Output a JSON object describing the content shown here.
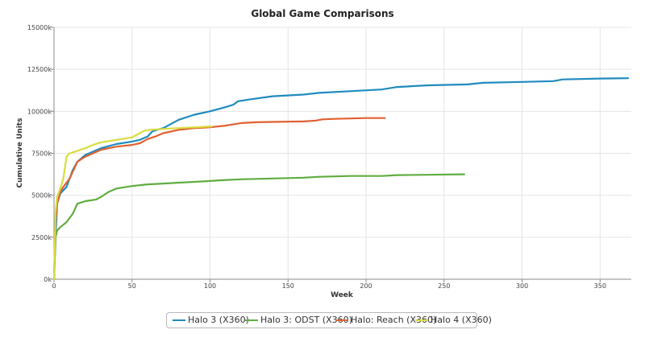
{
  "chart_data": {
    "type": "line",
    "title": "Global Game Comparisons",
    "xlabel": "Week",
    "ylabel": "Cumulative Units",
    "xlim": [
      0,
      370
    ],
    "ylim": [
      0,
      15000000
    ],
    "x_ticks": [
      0,
      50,
      100,
      150,
      200,
      250,
      300,
      350
    ],
    "x_tick_labels": [
      "0",
      "50",
      "100",
      "150",
      "200",
      "250",
      "300",
      "350"
    ],
    "y_ticks": [
      0,
      2500000,
      5000000,
      7500000,
      10000000,
      12500000,
      15000000
    ],
    "y_tick_labels": [
      "0k",
      "2500k",
      "5000k",
      "7500k",
      "10000k",
      "12500k",
      "15000k"
    ],
    "grid": true,
    "legend_position": "bottom",
    "series": [
      {
        "name": "Halo 3 (X360)",
        "color": "#1f8bbf",
        "x": [
          0,
          1,
          2,
          4,
          8,
          12,
          15,
          20,
          30,
          40,
          50,
          55,
          60,
          63,
          66,
          70,
          80,
          90,
          100,
          110,
          115,
          118,
          125,
          140,
          160,
          170,
          190,
          210,
          220,
          240,
          265,
          275,
          300,
          320,
          326,
          350,
          368
        ],
        "y": [
          0,
          2500000,
          4500000,
          5100000,
          5500000,
          6500000,
          7000000,
          7400000,
          7800000,
          8050000,
          8200000,
          8300000,
          8500000,
          8800000,
          8900000,
          9000000,
          9500000,
          9800000,
          10000000,
          10250000,
          10400000,
          10600000,
          10700000,
          10900000,
          11000000,
          11100000,
          11200000,
          11300000,
          11450000,
          11550000,
          11600000,
          11700000,
          11750000,
          11800000,
          11900000,
          11950000,
          11970000
        ]
      },
      {
        "name": "Halo 3: ODST (X360)",
        "color": "#5fad40",
        "x": [
          0,
          1,
          2,
          4,
          8,
          12,
          15,
          20,
          27,
          30,
          35,
          40,
          50,
          60,
          70,
          80,
          90,
          100,
          108,
          120,
          140,
          160,
          170,
          190,
          210,
          220,
          240,
          263
        ],
        "y": [
          0,
          2500000,
          2900000,
          3100000,
          3400000,
          3900000,
          4500000,
          4650000,
          4750000,
          4900000,
          5200000,
          5400000,
          5550000,
          5650000,
          5700000,
          5750000,
          5800000,
          5850000,
          5900000,
          5950000,
          6000000,
          6050000,
          6100000,
          6150000,
          6150000,
          6200000,
          6220000,
          6250000
        ]
      },
      {
        "name": "Halo: Reach (X360)",
        "color": "#e06030",
        "x": [
          0,
          1,
          2,
          4,
          6,
          10,
          15,
          20,
          30,
          40,
          50,
          55,
          60,
          65,
          70,
          80,
          90,
          100,
          110,
          120,
          130,
          140,
          160,
          168,
          172,
          180,
          200,
          212
        ],
        "y": [
          0,
          3500000,
          4500000,
          5200000,
          5500000,
          6000000,
          7000000,
          7300000,
          7700000,
          7900000,
          8000000,
          8100000,
          8350000,
          8500000,
          8700000,
          8900000,
          9000000,
          9050000,
          9150000,
          9300000,
          9350000,
          9370000,
          9400000,
          9450000,
          9520000,
          9550000,
          9600000,
          9600000
        ]
      },
      {
        "name": "Halo 4 (X360)",
        "color": "#d9dc3e",
        "x": [
          0,
          1,
          2,
          4,
          6,
          8,
          10,
          15,
          20,
          25,
          30,
          40,
          50,
          55,
          58,
          62,
          70,
          80,
          90,
          101
        ],
        "y": [
          0,
          4000000,
          4900000,
          5400000,
          6000000,
          7300000,
          7500000,
          7650000,
          7800000,
          8000000,
          8150000,
          8300000,
          8450000,
          8700000,
          8850000,
          8900000,
          8950000,
          9000000,
          9050000,
          9100000
        ]
      }
    ]
  }
}
